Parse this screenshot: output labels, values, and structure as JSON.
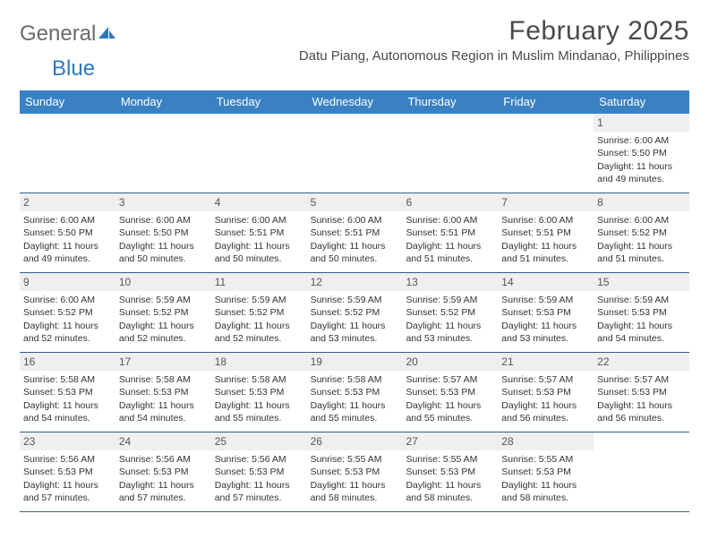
{
  "brand": {
    "part1": "General",
    "part2": "Blue"
  },
  "title": "February 2025",
  "location": "Datu Piang, Autonomous Region in Muslim Mindanao, Philippines",
  "colors": {
    "header_bg": "#3a81c4",
    "row_border": "#2f5f8a",
    "daynum_bg": "#efefef",
    "text": "#333333",
    "logo_gray": "#6b6b6b",
    "logo_blue": "#2f78bf"
  },
  "dow": [
    "Sunday",
    "Monday",
    "Tuesday",
    "Wednesday",
    "Thursday",
    "Friday",
    "Saturday"
  ],
  "weeks": [
    [
      {
        "n": "",
        "empty": true
      },
      {
        "n": "",
        "empty": true
      },
      {
        "n": "",
        "empty": true
      },
      {
        "n": "",
        "empty": true
      },
      {
        "n": "",
        "empty": true
      },
      {
        "n": "",
        "empty": true
      },
      {
        "n": "1",
        "sr": "Sunrise: 6:00 AM",
        "ss": "Sunset: 5:50 PM",
        "dl": "Daylight: 11 hours and 49 minutes."
      }
    ],
    [
      {
        "n": "2",
        "sr": "Sunrise: 6:00 AM",
        "ss": "Sunset: 5:50 PM",
        "dl": "Daylight: 11 hours and 49 minutes."
      },
      {
        "n": "3",
        "sr": "Sunrise: 6:00 AM",
        "ss": "Sunset: 5:50 PM",
        "dl": "Daylight: 11 hours and 50 minutes."
      },
      {
        "n": "4",
        "sr": "Sunrise: 6:00 AM",
        "ss": "Sunset: 5:51 PM",
        "dl": "Daylight: 11 hours and 50 minutes."
      },
      {
        "n": "5",
        "sr": "Sunrise: 6:00 AM",
        "ss": "Sunset: 5:51 PM",
        "dl": "Daylight: 11 hours and 50 minutes."
      },
      {
        "n": "6",
        "sr": "Sunrise: 6:00 AM",
        "ss": "Sunset: 5:51 PM",
        "dl": "Daylight: 11 hours and 51 minutes."
      },
      {
        "n": "7",
        "sr": "Sunrise: 6:00 AM",
        "ss": "Sunset: 5:51 PM",
        "dl": "Daylight: 11 hours and 51 minutes."
      },
      {
        "n": "8",
        "sr": "Sunrise: 6:00 AM",
        "ss": "Sunset: 5:52 PM",
        "dl": "Daylight: 11 hours and 51 minutes."
      }
    ],
    [
      {
        "n": "9",
        "sr": "Sunrise: 6:00 AM",
        "ss": "Sunset: 5:52 PM",
        "dl": "Daylight: 11 hours and 52 minutes."
      },
      {
        "n": "10",
        "sr": "Sunrise: 5:59 AM",
        "ss": "Sunset: 5:52 PM",
        "dl": "Daylight: 11 hours and 52 minutes."
      },
      {
        "n": "11",
        "sr": "Sunrise: 5:59 AM",
        "ss": "Sunset: 5:52 PM",
        "dl": "Daylight: 11 hours and 52 minutes."
      },
      {
        "n": "12",
        "sr": "Sunrise: 5:59 AM",
        "ss": "Sunset: 5:52 PM",
        "dl": "Daylight: 11 hours and 53 minutes."
      },
      {
        "n": "13",
        "sr": "Sunrise: 5:59 AM",
        "ss": "Sunset: 5:52 PM",
        "dl": "Daylight: 11 hours and 53 minutes."
      },
      {
        "n": "14",
        "sr": "Sunrise: 5:59 AM",
        "ss": "Sunset: 5:53 PM",
        "dl": "Daylight: 11 hours and 53 minutes."
      },
      {
        "n": "15",
        "sr": "Sunrise: 5:59 AM",
        "ss": "Sunset: 5:53 PM",
        "dl": "Daylight: 11 hours and 54 minutes."
      }
    ],
    [
      {
        "n": "16",
        "sr": "Sunrise: 5:58 AM",
        "ss": "Sunset: 5:53 PM",
        "dl": "Daylight: 11 hours and 54 minutes."
      },
      {
        "n": "17",
        "sr": "Sunrise: 5:58 AM",
        "ss": "Sunset: 5:53 PM",
        "dl": "Daylight: 11 hours and 54 minutes."
      },
      {
        "n": "18",
        "sr": "Sunrise: 5:58 AM",
        "ss": "Sunset: 5:53 PM",
        "dl": "Daylight: 11 hours and 55 minutes."
      },
      {
        "n": "19",
        "sr": "Sunrise: 5:58 AM",
        "ss": "Sunset: 5:53 PM",
        "dl": "Daylight: 11 hours and 55 minutes."
      },
      {
        "n": "20",
        "sr": "Sunrise: 5:57 AM",
        "ss": "Sunset: 5:53 PM",
        "dl": "Daylight: 11 hours and 55 minutes."
      },
      {
        "n": "21",
        "sr": "Sunrise: 5:57 AM",
        "ss": "Sunset: 5:53 PM",
        "dl": "Daylight: 11 hours and 56 minutes."
      },
      {
        "n": "22",
        "sr": "Sunrise: 5:57 AM",
        "ss": "Sunset: 5:53 PM",
        "dl": "Daylight: 11 hours and 56 minutes."
      }
    ],
    [
      {
        "n": "23",
        "sr": "Sunrise: 5:56 AM",
        "ss": "Sunset: 5:53 PM",
        "dl": "Daylight: 11 hours and 57 minutes."
      },
      {
        "n": "24",
        "sr": "Sunrise: 5:56 AM",
        "ss": "Sunset: 5:53 PM",
        "dl": "Daylight: 11 hours and 57 minutes."
      },
      {
        "n": "25",
        "sr": "Sunrise: 5:56 AM",
        "ss": "Sunset: 5:53 PM",
        "dl": "Daylight: 11 hours and 57 minutes."
      },
      {
        "n": "26",
        "sr": "Sunrise: 5:55 AM",
        "ss": "Sunset: 5:53 PM",
        "dl": "Daylight: 11 hours and 58 minutes."
      },
      {
        "n": "27",
        "sr": "Sunrise: 5:55 AM",
        "ss": "Sunset: 5:53 PM",
        "dl": "Daylight: 11 hours and 58 minutes."
      },
      {
        "n": "28",
        "sr": "Sunrise: 5:55 AM",
        "ss": "Sunset: 5:53 PM",
        "dl": "Daylight: 11 hours and 58 minutes."
      },
      {
        "n": "",
        "empty": true
      }
    ]
  ]
}
